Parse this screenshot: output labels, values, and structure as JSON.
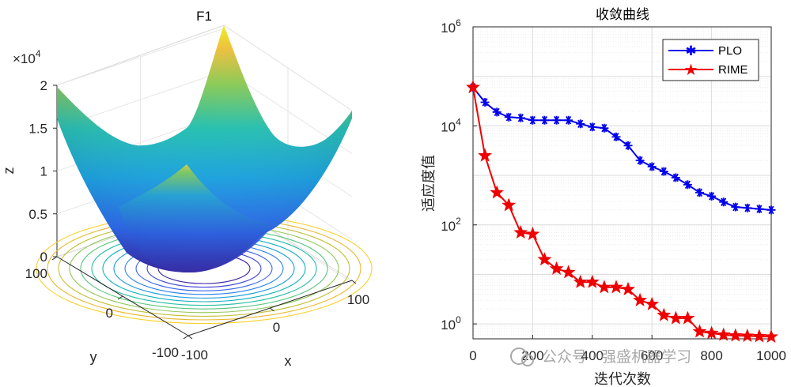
{
  "chart_data": [
    {
      "type": "surface3d",
      "title": "F1",
      "xlabel": "x",
      "ylabel": "y",
      "zlabel": "z",
      "function": "z = x^2 + y^2",
      "xlim": [
        -100,
        100
      ],
      "ylim": [
        -100,
        100
      ],
      "zlim": [
        0,
        20000
      ],
      "x_ticks": [
        "-100",
        "0",
        "100"
      ],
      "y_ticks": [
        "-100",
        "0",
        "100"
      ],
      "z_ticks": [
        "0",
        "0.5",
        "1",
        "1.5",
        "2"
      ],
      "z_exponent": "×10",
      "z_exponent_power": "4",
      "colormap": "parula",
      "contour_projection": true
    },
    {
      "type": "line",
      "title": "收敛曲线",
      "xlabel": "迭代次数",
      "ylabel": "适应度值",
      "xlim": [
        0,
        1000
      ],
      "yscale": "log",
      "ylim": [
        0.5,
        1000000
      ],
      "x_ticks": [
        "0",
        "200",
        "400",
        "600",
        "800",
        "1000"
      ],
      "y_tick_base": "10",
      "y_tick_powers": [
        "0",
        "2",
        "4",
        "6"
      ],
      "grid": true,
      "legend_position": "top-right",
      "series": [
        {
          "name": "PLO",
          "color": "#0000ee",
          "marker": "asterisk",
          "x": [
            0,
            40,
            80,
            120,
            160,
            200,
            240,
            280,
            320,
            360,
            400,
            440,
            480,
            520,
            560,
            600,
            640,
            680,
            720,
            760,
            800,
            840,
            880,
            920,
            960,
            1000
          ],
          "y": [
            60000,
            30000,
            19000,
            15000,
            14500,
            13000,
            13000,
            13000,
            13000,
            11000,
            9500,
            9000,
            6000,
            4000,
            2000,
            1500,
            1200,
            900,
            650,
            450,
            380,
            290,
            230,
            220,
            210,
            200
          ]
        },
        {
          "name": "RIME",
          "color": "#ee0000",
          "marker": "pentagram",
          "x": [
            0,
            40,
            80,
            120,
            160,
            200,
            240,
            280,
            320,
            360,
            400,
            440,
            480,
            520,
            560,
            600,
            640,
            680,
            720,
            760,
            800,
            840,
            880,
            920,
            960,
            1000
          ],
          "y": [
            60000,
            2500,
            450,
            250,
            70,
            65,
            20,
            13,
            11,
            7,
            7,
            5.5,
            5.5,
            5,
            3,
            2.5,
            1.5,
            1.3,
            1.3,
            0.7,
            0.65,
            0.6,
            0.58,
            0.57,
            0.56,
            0.55
          ]
        }
      ]
    }
  ],
  "watermark": "公众号 · 强盛机器学习"
}
